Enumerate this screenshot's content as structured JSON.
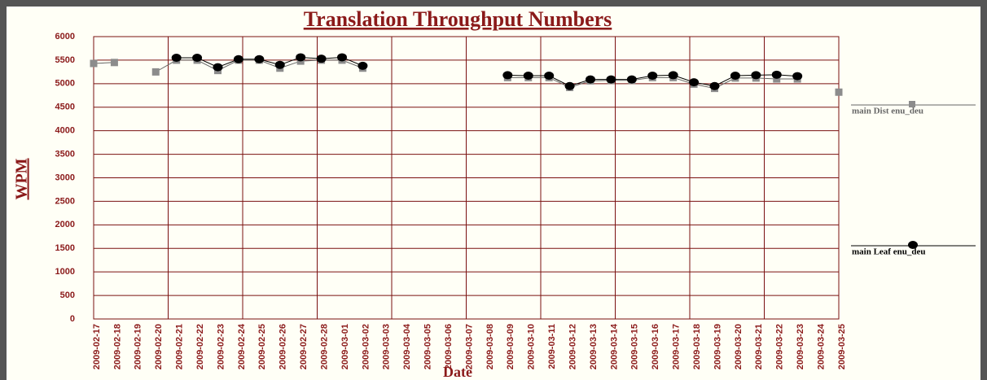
{
  "chart_data": {
    "type": "line",
    "title": "Translation Throughput Numbers",
    "x_label": "Date",
    "y_label": "WPM",
    "categories": [
      "2009-02-17",
      "2009-02-18",
      "2009-02-19",
      "2009-02-20",
      "2009-02-21",
      "2009-02-22",
      "2009-02-23",
      "2009-02-24",
      "2009-02-25",
      "2009-02-26",
      "2009-02-27",
      "2009-02-28",
      "2009-03-01",
      "2009-03-02",
      "2009-03-03",
      "2009-03-04",
      "2009-03-05",
      "2009-03-06",
      "2009-03-07",
      "2009-03-08",
      "2009-03-09",
      "2009-03-10",
      "2009-03-11",
      "2009-03-12",
      "2009-03-13",
      "2009-03-14",
      "2009-03-15",
      "2009-03-16",
      "2009-03-17",
      "2009-03-18",
      "2009-03-19",
      "2009-03-20",
      "2009-03-21",
      "2009-03-22",
      "2009-03-23",
      "2009-03-24",
      "2009-03-25"
    ],
    "series": [
      {
        "name": "main Dist enu_deu",
        "color": "#8c8c8c",
        "marker": "square",
        "values": [
          5430,
          5450,
          null,
          5250,
          5500,
          5500,
          5280,
          5500,
          5500,
          5330,
          5480,
          5500,
          5500,
          5330,
          null,
          null,
          null,
          null,
          null,
          null,
          5130,
          5130,
          5130,
          4920,
          5060,
          5070,
          5070,
          5130,
          5130,
          4990,
          4900,
          5120,
          5120,
          5100,
          5100,
          null,
          4820
        ]
      },
      {
        "name": "main Leaf enu_deu",
        "color": "#000000",
        "marker": "circle",
        "values": [
          null,
          null,
          null,
          null,
          5550,
          5550,
          5350,
          5520,
          5520,
          5400,
          5560,
          5530,
          5560,
          5380,
          null,
          null,
          null,
          null,
          null,
          null,
          5180,
          5170,
          5170,
          4950,
          5090,
          5090,
          5090,
          5170,
          5180,
          5030,
          4950,
          5170,
          5180,
          5190,
          5160,
          null,
          null
        ]
      }
    ],
    "ylim": [
      0,
      6000
    ],
    "yticks": [
      0,
      500,
      1000,
      1500,
      2000,
      2500,
      3000,
      3500,
      4000,
      4500,
      5000,
      5500,
      6000
    ],
    "grid": true
  }
}
